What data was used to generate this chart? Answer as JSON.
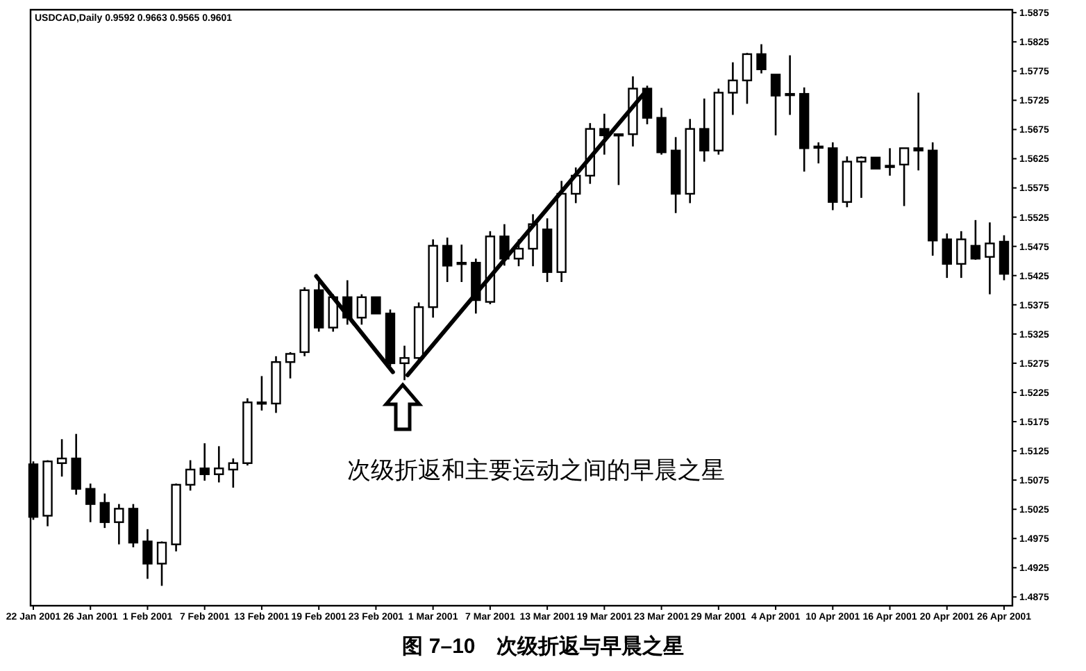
{
  "chart_data": {
    "type": "candlestick",
    "title": "图 7–10　次级折返与早晨之星",
    "annotations": [
      "USDCAD,Daily 0.9592 0.9663 0.9565 0.9601",
      "次级折返和主要运动之间的早晨之星"
    ],
    "categories": [
      "22 Jan 2001",
      null,
      null,
      null,
      "26 Jan 2001",
      null,
      null,
      null,
      "1 Feb 2001",
      null,
      null,
      null,
      "7 Feb 2001",
      null,
      null,
      null,
      "13 Feb 2001",
      null,
      null,
      null,
      "19 Feb 2001",
      null,
      null,
      null,
      "23 Feb 2001",
      null,
      null,
      null,
      "1 Mar 2001",
      null,
      null,
      null,
      "7 Mar 2001",
      null,
      null,
      null,
      "13 Mar 2001",
      null,
      null,
      null,
      "19 Mar 2001",
      null,
      null,
      null,
      "23 Mar 2001",
      null,
      null,
      null,
      "29 Mar 2001",
      null,
      null,
      null,
      "4 Apr 2001",
      null,
      null,
      null,
      "10 Apr 2001",
      null,
      null,
      null,
      "16 Apr 2001",
      null,
      null,
      null,
      "20 Apr 2001",
      null,
      null,
      null,
      "26 Apr 2001"
    ],
    "ohlc": [
      [
        1.5102,
        1.5107,
        1.5007,
        1.5012
      ],
      [
        1.5014,
        1.5109,
        1.4996,
        1.5107
      ],
      [
        1.5104,
        1.5145,
        1.5081,
        1.5112
      ],
      [
        1.5112,
        1.5154,
        1.505,
        1.506
      ],
      [
        1.506,
        1.5069,
        1.5003,
        1.5034
      ],
      [
        1.5036,
        1.5052,
        1.4993,
        1.5003
      ],
      [
        1.5003,
        1.5034,
        1.4965,
        1.5026
      ],
      [
        1.5026,
        1.5034,
        1.496,
        1.4968
      ],
      [
        1.497,
        1.4991,
        1.4906,
        1.4932
      ],
      [
        1.4932,
        1.497,
        1.4894,
        1.4968
      ],
      [
        1.4965,
        1.5069,
        1.4953,
        1.5067
      ],
      [
        1.5067,
        1.5109,
        1.5057,
        1.5093
      ],
      [
        1.5095,
        1.5138,
        1.5074,
        1.5085
      ],
      [
        1.5085,
        1.5133,
        1.5071,
        1.5095
      ],
      [
        1.5093,
        1.5112,
        1.5062,
        1.5104
      ],
      [
        1.5104,
        1.5215,
        1.51,
        1.5208
      ],
      [
        1.5206,
        1.5253,
        1.5194,
        1.5208
      ],
      [
        1.5206,
        1.5287,
        1.519,
        1.5277
      ],
      [
        1.5277,
        1.5294,
        1.5249,
        1.5291
      ],
      [
        1.5294,
        1.5405,
        1.5287,
        1.54
      ],
      [
        1.54,
        1.5414,
        1.5329,
        1.5336
      ],
      [
        1.5336,
        1.5393,
        1.5329,
        1.5388
      ],
      [
        1.5388,
        1.5417,
        1.5341,
        1.5353
      ],
      [
        1.5353,
        1.5393,
        1.5341,
        1.5388
      ],
      [
        1.5388,
        1.5388,
        1.536,
        1.536
      ],
      [
        1.536,
        1.5367,
        1.527,
        1.5275
      ],
      [
        1.5275,
        1.5305,
        1.5246,
        1.5284
      ],
      [
        1.5284,
        1.5379,
        1.5277,
        1.5371
      ],
      [
        1.5371,
        1.5487,
        1.5353,
        1.5476
      ],
      [
        1.5476,
        1.549,
        1.5414,
        1.5442
      ],
      [
        1.5447,
        1.5478,
        1.5414,
        1.5447
      ],
      [
        1.5447,
        1.5454,
        1.536,
        1.5383
      ],
      [
        1.538,
        1.5501,
        1.5376,
        1.5492
      ],
      [
        1.5492,
        1.5513,
        1.5442,
        1.5454
      ],
      [
        1.5454,
        1.5487,
        1.5441,
        1.5471
      ],
      [
        1.5471,
        1.553,
        1.5441,
        1.5513
      ],
      [
        1.5504,
        1.5523,
        1.5414,
        1.5431
      ],
      [
        1.5431,
        1.5587,
        1.5414,
        1.5565
      ],
      [
        1.5565,
        1.561,
        1.5549,
        1.5596
      ],
      [
        1.5596,
        1.5686,
        1.5582,
        1.5676
      ],
      [
        1.5676,
        1.5702,
        1.5632,
        1.5665
      ],
      [
        1.5667,
        1.5667,
        1.558,
        1.5667
      ],
      [
        1.5667,
        1.5766,
        1.5646,
        1.5745
      ],
      [
        1.5745,
        1.575,
        1.5684,
        1.5695
      ],
      [
        1.5695,
        1.5712,
        1.5632,
        1.5636
      ],
      [
        1.5639,
        1.5662,
        1.5532,
        1.5565
      ],
      [
        1.5565,
        1.5693,
        1.5549,
        1.5676
      ],
      [
        1.5676,
        1.5728,
        1.562,
        1.5639
      ],
      [
        1.5639,
        1.5745,
        1.5632,
        1.5738
      ],
      [
        1.5738,
        1.579,
        1.57,
        1.5759
      ],
      [
        1.5759,
        1.5806,
        1.5719,
        1.5804
      ],
      [
        1.5804,
        1.5821,
        1.5771,
        1.5778
      ],
      [
        1.5769,
        1.5769,
        1.5665,
        1.5733
      ],
      [
        1.5736,
        1.5802,
        1.57,
        1.5736
      ],
      [
        1.5736,
        1.5747,
        1.5603,
        1.5643
      ],
      [
        1.5646,
        1.5653,
        1.5617,
        1.5646
      ],
      [
        1.5643,
        1.5653,
        1.5537,
        1.5551
      ],
      [
        1.5551,
        1.5629,
        1.5542,
        1.562
      ],
      [
        1.562,
        1.5629,
        1.5558,
        1.5627
      ],
      [
        1.5627,
        1.5627,
        1.5608,
        1.5608
      ],
      [
        1.5613,
        1.5643,
        1.5596,
        1.5613
      ],
      [
        1.5615,
        1.5643,
        1.5544,
        1.5643
      ],
      [
        1.5643,
        1.5738,
        1.5605,
        1.5639
      ],
      [
        1.5639,
        1.5653,
        1.5459,
        1.5485
      ],
      [
        1.5487,
        1.5497,
        1.5421,
        1.5445
      ],
      [
        1.5445,
        1.5501,
        1.5421,
        1.5487
      ],
      [
        1.5476,
        1.552,
        1.5452,
        1.5454
      ],
      [
        1.5457,
        1.5516,
        1.5393,
        1.548
      ],
      [
        1.5483,
        1.5494,
        1.5417,
        1.5428
      ]
    ],
    "ylim": [
      1.486,
      1.588
    ],
    "yticks": [
      1.4875,
      1.4925,
      1.4975,
      1.5025,
      1.5075,
      1.5125,
      1.5175,
      1.5225,
      1.5275,
      1.5325,
      1.5375,
      1.5425,
      1.5475,
      1.5525,
      1.5575,
      1.5625,
      1.5675,
      1.5725,
      1.5775,
      1.5825,
      1.5875
    ]
  }
}
